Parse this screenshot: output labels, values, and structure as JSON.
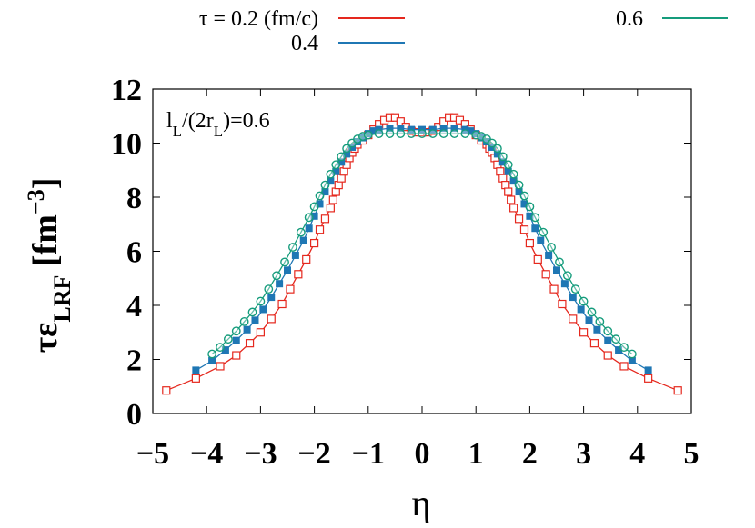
{
  "chart_data": {
    "type": "line",
    "xlabel": "η",
    "ylabel": {
      "main": "τε",
      "sub": "LRF",
      "unit_open": " [fm",
      "unit_exp": "−3",
      "unit_close": "]"
    },
    "xlim": [
      -5,
      5
    ],
    "ylim": [
      0,
      12
    ],
    "xticks": [
      -5,
      -4,
      -3,
      -2,
      -1,
      0,
      1,
      2,
      3,
      4,
      5
    ],
    "yticks": [
      0,
      2,
      4,
      6,
      8,
      10,
      12
    ],
    "xtick_labels": [
      "−5",
      "−4",
      "−3",
      "−2",
      "−1",
      "0",
      "1",
      "2",
      "3",
      "4",
      "5"
    ],
    "ytick_labels": [
      "0",
      "2",
      "4",
      "6",
      "8",
      "10",
      "12"
    ],
    "grid": false,
    "legend_position": "top",
    "annotation": {
      "main1": "l",
      "sub1": "L",
      "main2": "/(2r",
      "sub2": "L",
      "main3": ")=0.6"
    },
    "series": [
      {
        "name": "τ = 0.2 (fm/c)",
        "color": "#e5281e",
        "marker": "square-open",
        "x": [
          -4.75,
          -4.2,
          -3.75,
          -3.45,
          -3.2,
          -3.0,
          -2.8,
          -2.6,
          -2.45,
          -2.3,
          -2.15,
          -2.0,
          -1.9,
          -1.8,
          -1.7,
          -1.65,
          -1.6,
          -1.55,
          -1.5,
          -1.45,
          -1.4,
          -1.35,
          -1.3,
          -1.25,
          -1.2,
          -1.1,
          -1.0,
          -0.9,
          -0.8,
          -0.7,
          -0.6,
          -0.5,
          -0.4,
          -0.3,
          -0.2,
          -0.1,
          0.0,
          0.1,
          0.2,
          0.3,
          0.4,
          0.5,
          0.6,
          0.7,
          0.8,
          0.9,
          1.0,
          1.1,
          1.2,
          1.25,
          1.3,
          1.35,
          1.4,
          1.45,
          1.5,
          1.55,
          1.6,
          1.65,
          1.7,
          1.8,
          1.9,
          2.0,
          2.15,
          2.3,
          2.45,
          2.6,
          2.8,
          3.0,
          3.2,
          3.45,
          3.75,
          4.2,
          4.75
        ],
        "y": [
          0.85,
          1.3,
          1.75,
          2.15,
          2.6,
          3.0,
          3.5,
          4.05,
          4.6,
          5.15,
          5.7,
          6.3,
          6.8,
          7.2,
          7.6,
          7.9,
          8.2,
          8.45,
          8.7,
          8.95,
          9.2,
          9.45,
          9.65,
          9.8,
          9.95,
          10.1,
          10.3,
          10.5,
          10.7,
          10.85,
          10.95,
          10.95,
          10.8,
          10.6,
          10.45,
          10.4,
          10.4,
          10.4,
          10.45,
          10.6,
          10.8,
          10.95,
          10.95,
          10.85,
          10.7,
          10.5,
          10.3,
          10.1,
          9.95,
          9.8,
          9.65,
          9.45,
          9.2,
          8.95,
          8.7,
          8.45,
          8.2,
          7.9,
          7.6,
          7.2,
          6.8,
          6.3,
          5.7,
          5.15,
          4.6,
          4.05,
          3.5,
          3.0,
          2.6,
          2.15,
          1.75,
          1.3,
          0.85
        ]
      },
      {
        "name": "0.4",
        "color": "#1f77b4",
        "marker": "square-filled",
        "x": [
          -4.2,
          -3.9,
          -3.65,
          -3.45,
          -3.25,
          -3.1,
          -2.95,
          -2.8,
          -2.65,
          -2.5,
          -2.35,
          -2.2,
          -2.1,
          -2.0,
          -1.9,
          -1.8,
          -1.7,
          -1.6,
          -1.5,
          -1.4,
          -1.3,
          -1.2,
          -1.1,
          -1.0,
          -0.9,
          -0.8,
          -0.6,
          -0.4,
          -0.2,
          0.0,
          0.2,
          0.4,
          0.6,
          0.8,
          0.9,
          1.0,
          1.1,
          1.2,
          1.3,
          1.4,
          1.5,
          1.6,
          1.7,
          1.8,
          1.9,
          2.0,
          2.1,
          2.2,
          2.35,
          2.5,
          2.65,
          2.8,
          2.95,
          3.1,
          3.25,
          3.45,
          3.65,
          3.9,
          4.2
        ],
        "y": [
          1.6,
          1.95,
          2.35,
          2.7,
          3.1,
          3.45,
          3.85,
          4.3,
          4.8,
          5.3,
          5.85,
          6.4,
          6.85,
          7.3,
          7.75,
          8.2,
          8.6,
          8.95,
          9.3,
          9.6,
          9.85,
          10.05,
          10.2,
          10.35,
          10.45,
          10.5,
          10.55,
          10.55,
          10.5,
          10.5,
          10.5,
          10.55,
          10.55,
          10.5,
          10.45,
          10.35,
          10.2,
          10.05,
          9.85,
          9.6,
          9.3,
          8.95,
          8.6,
          8.2,
          7.75,
          7.3,
          6.85,
          6.4,
          5.85,
          5.3,
          4.8,
          4.3,
          3.85,
          3.45,
          3.1,
          2.7,
          2.35,
          1.95,
          1.6
        ]
      },
      {
        "name": "0.6",
        "color": "#159c7c",
        "marker": "circle-open",
        "x": [
          -3.9,
          -3.75,
          -3.6,
          -3.45,
          -3.3,
          -3.15,
          -3.0,
          -2.85,
          -2.7,
          -2.55,
          -2.4,
          -2.25,
          -2.1,
          -2.0,
          -1.9,
          -1.8,
          -1.7,
          -1.6,
          -1.5,
          -1.4,
          -1.3,
          -1.2,
          -1.1,
          -1.0,
          -0.8,
          -0.6,
          -0.4,
          -0.2,
          0.0,
          0.2,
          0.4,
          0.6,
          0.8,
          1.0,
          1.1,
          1.2,
          1.3,
          1.4,
          1.5,
          1.6,
          1.7,
          1.8,
          1.9,
          2.0,
          2.1,
          2.25,
          2.4,
          2.55,
          2.7,
          2.85,
          3.0,
          3.15,
          3.3,
          3.45,
          3.6,
          3.75,
          3.9
        ],
        "y": [
          2.2,
          2.45,
          2.75,
          3.05,
          3.4,
          3.75,
          4.15,
          4.6,
          5.1,
          5.6,
          6.15,
          6.7,
          7.25,
          7.65,
          8.05,
          8.45,
          8.85,
          9.2,
          9.5,
          9.8,
          10.0,
          10.15,
          10.25,
          10.3,
          10.35,
          10.35,
          10.35,
          10.35,
          10.35,
          10.35,
          10.35,
          10.35,
          10.35,
          10.3,
          10.25,
          10.15,
          10.0,
          9.8,
          9.5,
          9.2,
          8.85,
          8.45,
          8.05,
          7.65,
          7.25,
          6.7,
          6.15,
          5.6,
          5.1,
          4.6,
          4.15,
          3.75,
          3.4,
          3.05,
          2.75,
          2.45,
          2.2
        ]
      }
    ]
  }
}
